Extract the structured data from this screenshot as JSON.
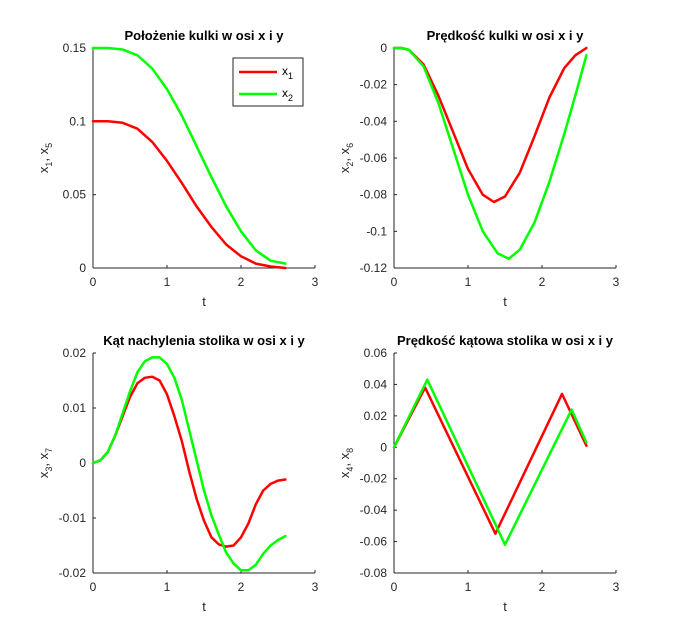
{
  "chart_data": [
    {
      "type": "line",
      "title": "Położenie kulki w osi x i y",
      "xlabel": "t",
      "ylabel": {
        "a": "x",
        "a_sub": "1",
        "sep": ", x",
        "b_sub": "5"
      },
      "xlim": [
        0,
        3
      ],
      "ylim": [
        0,
        0.15
      ],
      "xticks": [
        0,
        1,
        2,
        3
      ],
      "xtick_labels": [
        "0",
        "1",
        "2",
        "3"
      ],
      "yticks": [
        0,
        0.05,
        0.1,
        0.15
      ],
      "ytick_labels": [
        "0",
        "0.05",
        "0.1",
        "0.15"
      ],
      "grid": false,
      "legend": {
        "placement": "top-right",
        "entries": [
          {
            "name": "x",
            "sub": "1",
            "color": "#ff0000"
          },
          {
            "name": "x",
            "sub": "2",
            "color": "#00ff00"
          }
        ]
      },
      "series": [
        {
          "name": "x1",
          "color": "#ff0000",
          "x": [
            0,
            0.2,
            0.4,
            0.6,
            0.8,
            1.0,
            1.2,
            1.4,
            1.6,
            1.8,
            2.0,
            2.2,
            2.4,
            2.6
          ],
          "y": [
            0.1,
            0.1,
            0.099,
            0.095,
            0.086,
            0.073,
            0.058,
            0.042,
            0.028,
            0.016,
            0.008,
            0.003,
            0.001,
            0.0
          ]
        },
        {
          "name": "x2",
          "color": "#00ff00",
          "x": [
            0,
            0.2,
            0.4,
            0.6,
            0.8,
            1.0,
            1.2,
            1.4,
            1.6,
            1.8,
            2.0,
            2.2,
            2.4,
            2.6
          ],
          "y": [
            0.15,
            0.15,
            0.149,
            0.145,
            0.136,
            0.122,
            0.104,
            0.083,
            0.062,
            0.042,
            0.025,
            0.012,
            0.005,
            0.003
          ]
        }
      ]
    },
    {
      "type": "line",
      "title": "Prędkość kulki w osi x i y",
      "xlabel": "t",
      "ylabel": {
        "a": "x",
        "a_sub": "2",
        "sep": ", x",
        "b_sub": "6"
      },
      "xlim": [
        0,
        3
      ],
      "ylim": [
        -0.12,
        0
      ],
      "xticks": [
        0,
        1,
        2,
        3
      ],
      "xtick_labels": [
        "0",
        "1",
        "2",
        "3"
      ],
      "yticks": [
        -0.12,
        -0.1,
        -0.08,
        -0.06,
        -0.04,
        -0.02,
        0
      ],
      "ytick_labels": [
        "-0.12",
        "-0.1",
        "-0.08",
        "-0.06",
        "-0.04",
        "-0.02",
        "0"
      ],
      "grid": false,
      "series": [
        {
          "name": "x1",
          "color": "#ff0000",
          "x": [
            0,
            0.1,
            0.2,
            0.4,
            0.6,
            0.8,
            1.0,
            1.2,
            1.35,
            1.5,
            1.7,
            1.9,
            2.1,
            2.3,
            2.45,
            2.6
          ],
          "y": [
            0.0,
            0.0,
            -0.001,
            -0.009,
            -0.026,
            -0.046,
            -0.066,
            -0.08,
            -0.084,
            -0.081,
            -0.068,
            -0.048,
            -0.027,
            -0.011,
            -0.004,
            0.0
          ]
        },
        {
          "name": "x2",
          "color": "#00ff00",
          "x": [
            0,
            0.1,
            0.2,
            0.4,
            0.6,
            0.8,
            1.0,
            1.2,
            1.4,
            1.55,
            1.7,
            1.9,
            2.1,
            2.3,
            2.45,
            2.6
          ],
          "y": [
            0.0,
            0.0,
            -0.001,
            -0.01,
            -0.03,
            -0.055,
            -0.08,
            -0.1,
            -0.112,
            -0.115,
            -0.11,
            -0.095,
            -0.073,
            -0.047,
            -0.026,
            -0.004
          ]
        }
      ]
    },
    {
      "type": "line",
      "title": "Kąt nachylenia stolika w osi x i y",
      "xlabel": "t",
      "ylabel": {
        "a": "x",
        "a_sub": "3",
        "sep": ", x",
        "b_sub": "7"
      },
      "xlim": [
        0,
        3
      ],
      "ylim": [
        -0.02,
        0.02
      ],
      "xticks": [
        0,
        1,
        2,
        3
      ],
      "xtick_labels": [
        "0",
        "1",
        "2",
        "3"
      ],
      "yticks": [
        -0.02,
        -0.01,
        0,
        0.01,
        0.02
      ],
      "ytick_labels": [
        "-0.02",
        "-0.01",
        "0",
        "0.01",
        "0.02"
      ],
      "grid": false,
      "series": [
        {
          "name": "x1",
          "color": "#ff0000",
          "x": [
            0,
            0.1,
            0.2,
            0.3,
            0.4,
            0.5,
            0.6,
            0.7,
            0.8,
            0.9,
            1.0,
            1.1,
            1.2,
            1.3,
            1.4,
            1.5,
            1.6,
            1.7,
            1.8,
            1.9,
            2.0,
            2.1,
            2.2,
            2.3,
            2.4,
            2.5,
            2.6
          ],
          "y": [
            0.0,
            0.0005,
            0.002,
            0.005,
            0.0085,
            0.012,
            0.0145,
            0.0155,
            0.0157,
            0.015,
            0.0125,
            0.0085,
            0.004,
            -0.0015,
            -0.0065,
            -0.0105,
            -0.0135,
            -0.0148,
            -0.0152,
            -0.015,
            -0.0135,
            -0.011,
            -0.0075,
            -0.005,
            -0.0038,
            -0.0032,
            -0.003
          ]
        },
        {
          "name": "x2",
          "color": "#00ff00",
          "x": [
            0,
            0.1,
            0.2,
            0.3,
            0.4,
            0.5,
            0.6,
            0.7,
            0.8,
            0.9,
            1.0,
            1.1,
            1.2,
            1.3,
            1.4,
            1.5,
            1.6,
            1.7,
            1.8,
            1.9,
            2.0,
            2.1,
            2.2,
            2.3,
            2.4,
            2.5,
            2.6
          ],
          "y": [
            0.0,
            0.0005,
            0.002,
            0.005,
            0.009,
            0.013,
            0.0165,
            0.0185,
            0.0192,
            0.0192,
            0.018,
            0.0155,
            0.0115,
            0.006,
            0.0005,
            -0.005,
            -0.0095,
            -0.013,
            -0.0163,
            -0.0183,
            -0.0195,
            -0.0195,
            -0.0185,
            -0.0165,
            -0.015,
            -0.014,
            -0.0133
          ]
        }
      ]
    },
    {
      "type": "line",
      "title": "Prędkość kątowa stolika w osi x i y",
      "xlabel": "t",
      "ylabel": {
        "a": "x",
        "a_sub": "4",
        "sep": ", x",
        "b_sub": "8"
      },
      "xlim": [
        0,
        3
      ],
      "ylim": [
        -0.08,
        0.06
      ],
      "xticks": [
        0,
        1,
        2,
        3
      ],
      "xtick_labels": [
        "0",
        "1",
        "2",
        "3"
      ],
      "yticks": [
        -0.08,
        -0.06,
        -0.04,
        -0.02,
        0,
        0.02,
        0.04,
        0.06
      ],
      "ytick_labels": [
        "-0.08",
        "-0.06",
        "-0.04",
        "-0.02",
        "0",
        "0.02",
        "0.04",
        "0.06"
      ],
      "grid": false,
      "series": [
        {
          "name": "x1",
          "color": "#ff0000",
          "x": [
            0,
            0.42,
            1.37,
            2.27,
            2.6
          ],
          "y": [
            0.0,
            0.038,
            -0.055,
            0.034,
            0.001
          ]
        },
        {
          "name": "x2",
          "color": "#00ff00",
          "x": [
            0,
            0.45,
            1.5,
            2.4,
            2.6
          ],
          "y": [
            0.0,
            0.043,
            -0.062,
            0.024,
            0.003
          ]
        }
      ]
    }
  ]
}
